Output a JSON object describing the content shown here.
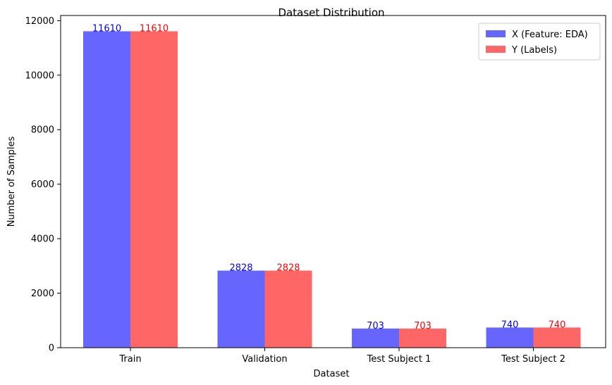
{
  "chart_data": {
    "type": "bar",
    "title": "Dataset Distribution",
    "xlabel": "Dataset",
    "ylabel": "Number of Samples",
    "categories": [
      "Train",
      "Validation",
      "Test Subject 1",
      "Test Subject 2"
    ],
    "series": [
      {
        "name": "X (Feature: EDA)",
        "values": [
          11610,
          2828,
          703,
          740
        ],
        "color": "#6666ff",
        "label_color": "#0000ff"
      },
      {
        "name": "Y (Labels)",
        "values": [
          11610,
          2828,
          703,
          740
        ],
        "color": "#ff6666",
        "label_color": "#ff0000"
      }
    ],
    "ylim": [
      0,
      12190
    ],
    "yticks": [
      0,
      2000,
      4000,
      6000,
      8000,
      10000,
      12000
    ],
    "legend_position": "top-right",
    "grid": false
  }
}
